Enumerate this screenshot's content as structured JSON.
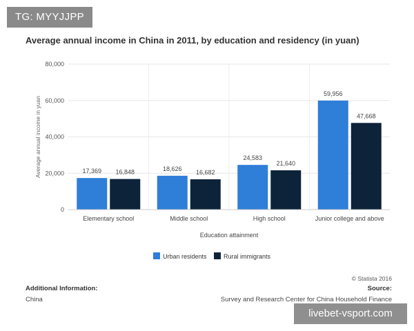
{
  "badge": "TG: MYYJJPP",
  "watermark": "livebet-vsport.com",
  "footer": {
    "copyright": "© Statista 2016",
    "left_title": "Additional Information:",
    "left_value": "China",
    "right_title": "Source:",
    "right_value": "Survey and Research Center for China Household Finance"
  },
  "colors": {
    "urban": "#2f7ed8",
    "rural": "#0d233a",
    "grid": "#e6e6e6"
  },
  "chart_data": {
    "type": "bar",
    "title": "Average annual income in China in 2011, by education and residency (in yuan)",
    "xlabel": "Education attainment",
    "ylabel": "Average annual income in yuan",
    "categories": [
      "Elementary school",
      "Middle school",
      "High school",
      "Junior college and above"
    ],
    "series": [
      {
        "name": "Urban residents",
        "values": [
          17369,
          18626,
          24583,
          59956
        ],
        "labels": [
          "17,369",
          "18,626",
          "24,583",
          "59,956"
        ]
      },
      {
        "name": "Rural immigrants",
        "values": [
          16848,
          16682,
          21640,
          47668
        ],
        "labels": [
          "16,848",
          "16,682",
          "21,640",
          "47,668"
        ]
      }
    ],
    "ylim": [
      0,
      80000
    ],
    "yticks": [
      0,
      20000,
      40000,
      60000,
      80000
    ],
    "ytick_labels": [
      "0",
      "20,000",
      "40,000",
      "60,000",
      "80,000"
    ],
    "grid": true,
    "legend_position": "bottom"
  }
}
